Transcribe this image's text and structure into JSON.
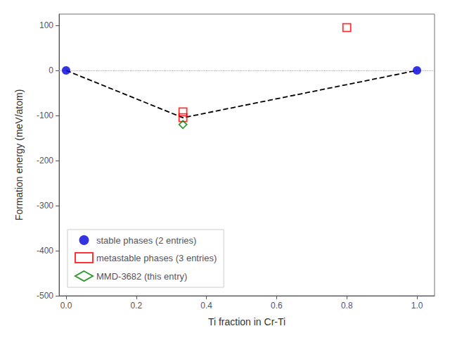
{
  "chart_data": {
    "type": "scatter",
    "xlabel": "Ti fraction in Cr-Ti",
    "ylabel": "Formation energy (meV/atom)",
    "xlim": [
      -0.02,
      1.05
    ],
    "ylim": [
      -500,
      125
    ],
    "xticks": [
      {
        "value": 0.0,
        "label": "0.0"
      },
      0.2,
      0.4,
      0.6,
      0.8,
      {
        "value": 1.0,
        "label": "1.0"
      }
    ],
    "yticks": [
      100,
      0,
      -100,
      -200,
      -300,
      -400,
      -500
    ],
    "grid": false,
    "legend": "lower left",
    "series": [
      {
        "type": "hline",
        "values": [
          0.0
        ],
        "color": "#aaaaaa",
        "line_style": "dotted"
      },
      {
        "type": "line",
        "x": [
          0.0,
          0.333,
          1.0
        ],
        "values": [
          0.0,
          -105,
          0.0
        ],
        "color": "black",
        "line_style": "dashed"
      },
      {
        "type": "scatter",
        "name": "stable phases (2 entries)",
        "x": [
          0.0,
          1.0
        ],
        "values": [
          0.0,
          0.0
        ],
        "color": "#0000dd",
        "marker": "circle"
      },
      {
        "type": "scatter",
        "name": "metastable phases (3 entries)",
        "x": [
          0.333,
          0.333,
          0.8
        ],
        "values": [
          -92,
          -105,
          95
        ],
        "color": "red",
        "marker": "open_square"
      },
      {
        "type": "scatter",
        "name": "MMD-3682 (this entry)",
        "x": [
          0.333
        ],
        "values": [
          -120
        ],
        "color": "green",
        "marker": "open_diamond"
      }
    ]
  }
}
